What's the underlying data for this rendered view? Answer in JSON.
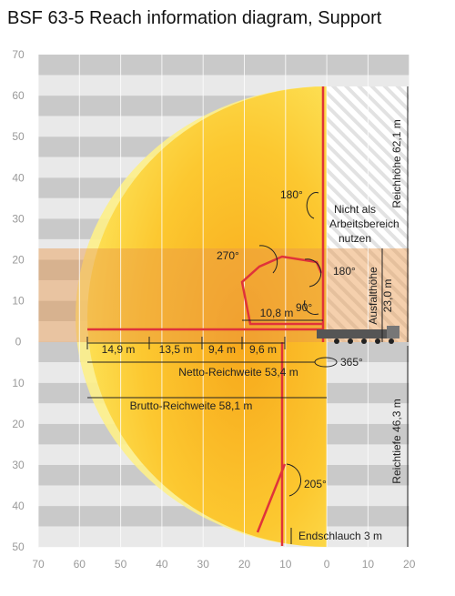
{
  "title": "BSF 63-5 Reach information diagram, Support",
  "y_axis_labels": [
    70,
    60,
    50,
    40,
    30,
    20,
    10,
    0,
    10,
    20,
    30,
    40,
    50
  ],
  "x_axis_labels": [
    70,
    60,
    50,
    40,
    30,
    20,
    10,
    0,
    10,
    20
  ],
  "angles": [
    "180°",
    "270°",
    "180°",
    "90°",
    "365°",
    "205°"
  ],
  "segments": [
    "14,9 m",
    "13,5 m",
    "9,4 m",
    "9,6 m",
    "10,8 m"
  ],
  "labels": {
    "reach_height": "Reichhöhe 62,1 m",
    "not_usable": [
      "Nicht als",
      "Arbeitsbereich",
      "nutzen"
    ],
    "unfold_height": [
      "Ausfalthöhe",
      "23,0 m"
    ],
    "reach_depth": "Reichtiefe 46,3 m",
    "net_reach": "Netto-Reichweite 53,4 m",
    "gross_reach": "Brutto-Reichweite 58,1 m",
    "end_hose": "Endschlauch 3 m"
  }
}
